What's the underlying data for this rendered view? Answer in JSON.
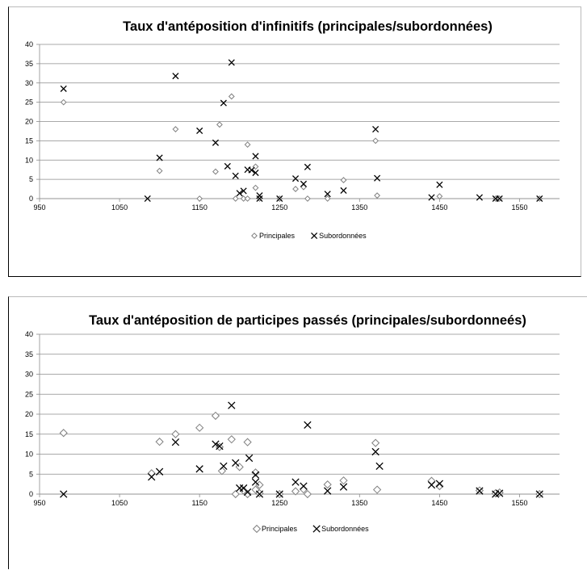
{
  "chart_data": [
    {
      "type": "scatter",
      "title": "Taux d'antéposition d'infinitifs (principales/subordonnées)",
      "xlabel": "",
      "ylabel": "",
      "xlim": [
        950,
        1600
      ],
      "ylim": [
        0,
        40
      ],
      "x_ticks": [
        "950",
        "1050",
        "1150",
        "1250",
        "1350",
        "1450",
        "1550"
      ],
      "y_ticks": [
        "0",
        "5",
        "10",
        "15",
        "20",
        "25",
        "30",
        "35",
        "40"
      ],
      "grid": true,
      "legend": "bottom",
      "series": [
        {
          "name": "Principales",
          "marker": "diamond",
          "color": "#7f7f7f",
          "points": [
            [
              980,
              25
            ],
            [
              1100,
              7.2
            ],
            [
              1120,
              18
            ],
            [
              1150,
              0
            ],
            [
              1170,
              7
            ],
            [
              1175,
              19.2
            ],
            [
              1190,
              26.5
            ],
            [
              1195,
              0
            ],
            [
              1205,
              0
            ],
            [
              1210,
              0
            ],
            [
              1210,
              14
            ],
            [
              1220,
              2.8
            ],
            [
              1220,
              8.3
            ],
            [
              1225,
              0
            ],
            [
              1250,
              0
            ],
            [
              1270,
              2.5
            ],
            [
              1280,
              3
            ],
            [
              1285,
              0
            ],
            [
              1310,
              0
            ],
            [
              1330,
              4.8
            ],
            [
              1370,
              15
            ],
            [
              1372,
              0.8
            ],
            [
              1450,
              0.6
            ],
            [
              1520,
              0
            ],
            [
              1525,
              0
            ],
            [
              1575,
              0
            ]
          ]
        },
        {
          "name": "Subordonnées",
          "marker": "x",
          "color": "#000000",
          "points": [
            [
              980,
              28.5
            ],
            [
              1085,
              0
            ],
            [
              1100,
              10.6
            ],
            [
              1120,
              31.8
            ],
            [
              1150,
              17.6
            ],
            [
              1170,
              14.5
            ],
            [
              1180,
              24.8
            ],
            [
              1185,
              8.4
            ],
            [
              1190,
              35.3
            ],
            [
              1195,
              5.9
            ],
            [
              1200,
              1.4
            ],
            [
              1205,
              2
            ],
            [
              1210,
              7.5
            ],
            [
              1215,
              7.4
            ],
            [
              1220,
              11
            ],
            [
              1220,
              6.7
            ],
            [
              1225,
              0.8
            ],
            [
              1225,
              0
            ],
            [
              1250,
              0
            ],
            [
              1270,
              5.2
            ],
            [
              1280,
              3.8
            ],
            [
              1285,
              8.2
            ],
            [
              1310,
              1.2
            ],
            [
              1330,
              2.1
            ],
            [
              1370,
              18
            ],
            [
              1372,
              5.3
            ],
            [
              1440,
              0.3
            ],
            [
              1450,
              3.6
            ],
            [
              1500,
              0.3
            ],
            [
              1520,
              0
            ],
            [
              1525,
              0
            ],
            [
              1575,
              0
            ]
          ]
        }
      ]
    },
    {
      "type": "scatter",
      "title": "Taux d'antéposition de participes passés (principales/subordonneés)",
      "xlabel": "",
      "ylabel": "",
      "xlim": [
        950,
        1600
      ],
      "ylim": [
        0,
        40
      ],
      "x_ticks": [
        "950",
        "1050",
        "1150",
        "1250",
        "1350",
        "1450",
        "1550"
      ],
      "y_ticks": [
        "0",
        "5",
        "10",
        "15",
        "20",
        "25",
        "30",
        "35",
        "40"
      ],
      "grid": true,
      "legend": "bottom",
      "series": [
        {
          "name": "Principales",
          "marker": "diamond",
          "color": "#7f7f7f",
          "points": [
            [
              980,
              15.3
            ],
            [
              1090,
              5.2
            ],
            [
              1100,
              13.1
            ],
            [
              1120,
              15
            ],
            [
              1150,
              16.6
            ],
            [
              1170,
              19.6
            ],
            [
              1175,
              11.8
            ],
            [
              1178,
              5.8
            ],
            [
              1190,
              13.7
            ],
            [
              1195,
              0
            ],
            [
              1200,
              6.8
            ],
            [
              1205,
              0.9
            ],
            [
              1210,
              0
            ],
            [
              1210,
              13
            ],
            [
              1220,
              5.4
            ],
            [
              1220,
              1.1
            ],
            [
              1225,
              2.3
            ],
            [
              1225,
              0.2
            ],
            [
              1250,
              0
            ],
            [
              1270,
              0.7
            ],
            [
              1280,
              1.2
            ],
            [
              1285,
              0
            ],
            [
              1310,
              2.4
            ],
            [
              1330,
              3.4
            ],
            [
              1370,
              12.8
            ],
            [
              1372,
              1.1
            ],
            [
              1440,
              3.3
            ],
            [
              1450,
              2
            ],
            [
              1500,
              0.9
            ],
            [
              1520,
              0.2
            ],
            [
              1525,
              0.4
            ],
            [
              1575,
              0
            ]
          ]
        },
        {
          "name": "Subordonnées",
          "marker": "x",
          "color": "#000000",
          "points": [
            [
              980,
              0
            ],
            [
              1090,
              4.3
            ],
            [
              1100,
              5.6
            ],
            [
              1120,
              13
            ],
            [
              1150,
              6.3
            ],
            [
              1170,
              12.5
            ],
            [
              1175,
              12
            ],
            [
              1180,
              7
            ],
            [
              1190,
              22.2
            ],
            [
              1195,
              7.8
            ],
            [
              1200,
              1.5
            ],
            [
              1205,
              1.5
            ],
            [
              1210,
              0.5
            ],
            [
              1212,
              9
            ],
            [
              1220,
              4.8
            ],
            [
              1220,
              3
            ],
            [
              1225,
              0
            ],
            [
              1250,
              0
            ],
            [
              1270,
              3
            ],
            [
              1280,
              2
            ],
            [
              1285,
              17.3
            ],
            [
              1310,
              0.8
            ],
            [
              1330,
              1.8
            ],
            [
              1370,
              10.6
            ],
            [
              1375,
              7
            ],
            [
              1440,
              2.3
            ],
            [
              1450,
              2.6
            ],
            [
              1500,
              0.8
            ],
            [
              1520,
              0
            ],
            [
              1525,
              0.2
            ],
            [
              1575,
              0
            ]
          ]
        }
      ]
    }
  ]
}
